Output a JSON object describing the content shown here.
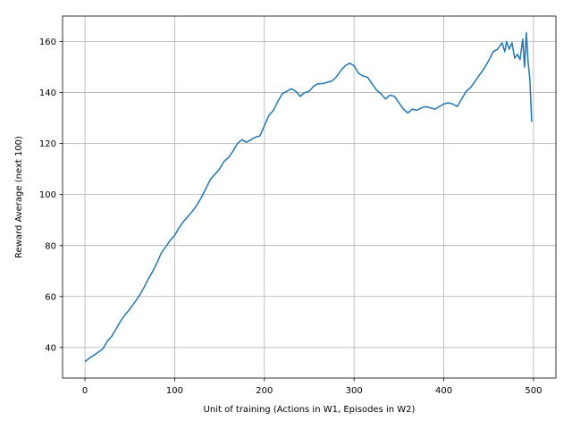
{
  "chart_data": {
    "type": "line",
    "title": "",
    "xlabel": "Unit of training (Actions in W1, Episodes in W2)",
    "ylabel": "Reward Average (next 100)",
    "xlim": [
      -25,
      525
    ],
    "ylim": [
      28,
      170
    ],
    "xticks": [
      0,
      100,
      200,
      300,
      400,
      500
    ],
    "yticks": [
      40,
      60,
      80,
      100,
      120,
      140,
      160
    ],
    "grid": true,
    "legend": "none",
    "series": [
      {
        "color": "#1f77b4",
        "points": [
          [
            0,
            34.5
          ],
          [
            5,
            35.8
          ],
          [
            10,
            37.0
          ],
          [
            15,
            38.2
          ],
          [
            20,
            39.5
          ],
          [
            25,
            42.5
          ],
          [
            30,
            44.5
          ],
          [
            35,
            47.5
          ],
          [
            40,
            50.5
          ],
          [
            45,
            53.0
          ],
          [
            50,
            55.0
          ],
          [
            55,
            57.5
          ],
          [
            60,
            60.0
          ],
          [
            65,
            63.0
          ],
          [
            70,
            66.5
          ],
          [
            75,
            69.5
          ],
          [
            80,
            73.0
          ],
          [
            85,
            77.0
          ],
          [
            90,
            79.5
          ],
          [
            95,
            82.0
          ],
          [
            100,
            84.0
          ],
          [
            105,
            87.0
          ],
          [
            110,
            89.5
          ],
          [
            115,
            91.5
          ],
          [
            120,
            93.5
          ],
          [
            125,
            96.0
          ],
          [
            130,
            99.0
          ],
          [
            135,
            102.5
          ],
          [
            140,
            106.0
          ],
          [
            145,
            108.0
          ],
          [
            150,
            110.0
          ],
          [
            155,
            113.0
          ],
          [
            160,
            114.5
          ],
          [
            165,
            117.0
          ],
          [
            170,
            120.0
          ],
          [
            175,
            121.5
          ],
          [
            180,
            120.5
          ],
          [
            185,
            121.5
          ],
          [
            190,
            122.5
          ],
          [
            195,
            123.0
          ],
          [
            200,
            127.0
          ],
          [
            205,
            131.0
          ],
          [
            210,
            133.0
          ],
          [
            215,
            136.5
          ],
          [
            220,
            139.5
          ],
          [
            225,
            140.5
          ],
          [
            230,
            141.5
          ],
          [
            235,
            140.5
          ],
          [
            240,
            138.5
          ],
          [
            245,
            140.0
          ],
          [
            250,
            140.5
          ],
          [
            255,
            142.5
          ],
          [
            260,
            143.5
          ],
          [
            265,
            143.5
          ],
          [
            270,
            144.0
          ],
          [
            275,
            144.5
          ],
          [
            280,
            146.0
          ],
          [
            285,
            148.5
          ],
          [
            290,
            150.5
          ],
          [
            295,
            151.5
          ],
          [
            300,
            150.5
          ],
          [
            305,
            147.5
          ],
          [
            310,
            146.5
          ],
          [
            315,
            146.0
          ],
          [
            320,
            143.5
          ],
          [
            325,
            141.0
          ],
          [
            330,
            139.5
          ],
          [
            335,
            137.5
          ],
          [
            340,
            139.0
          ],
          [
            345,
            138.5
          ],
          [
            350,
            136.0
          ],
          [
            355,
            133.5
          ],
          [
            360,
            132.0
          ],
          [
            365,
            133.5
          ],
          [
            370,
            133.0
          ],
          [
            375,
            134.0
          ],
          [
            380,
            134.5
          ],
          [
            385,
            134.0
          ],
          [
            390,
            133.5
          ],
          [
            395,
            134.5
          ],
          [
            400,
            135.5
          ],
          [
            405,
            136.0
          ],
          [
            410,
            135.5
          ],
          [
            415,
            134.5
          ],
          [
            420,
            137.5
          ],
          [
            425,
            140.5
          ],
          [
            430,
            142.0
          ],
          [
            435,
            144.5
          ],
          [
            440,
            147.0
          ],
          [
            445,
            149.5
          ],
          [
            450,
            152.5
          ],
          [
            455,
            156.0
          ],
          [
            460,
            157.0
          ],
          [
            465,
            159.5
          ],
          [
            468,
            156.0
          ],
          [
            470,
            160.0
          ],
          [
            473,
            157.0
          ],
          [
            476,
            159.5
          ],
          [
            479,
            153.5
          ],
          [
            482,
            155.0
          ],
          [
            485,
            153.0
          ],
          [
            488,
            161.0
          ],
          [
            490,
            150.0
          ],
          [
            492,
            163.5
          ],
          [
            494,
            152.0
          ],
          [
            496,
            145.0
          ],
          [
            498,
            128.5
          ]
        ]
      }
    ]
  }
}
